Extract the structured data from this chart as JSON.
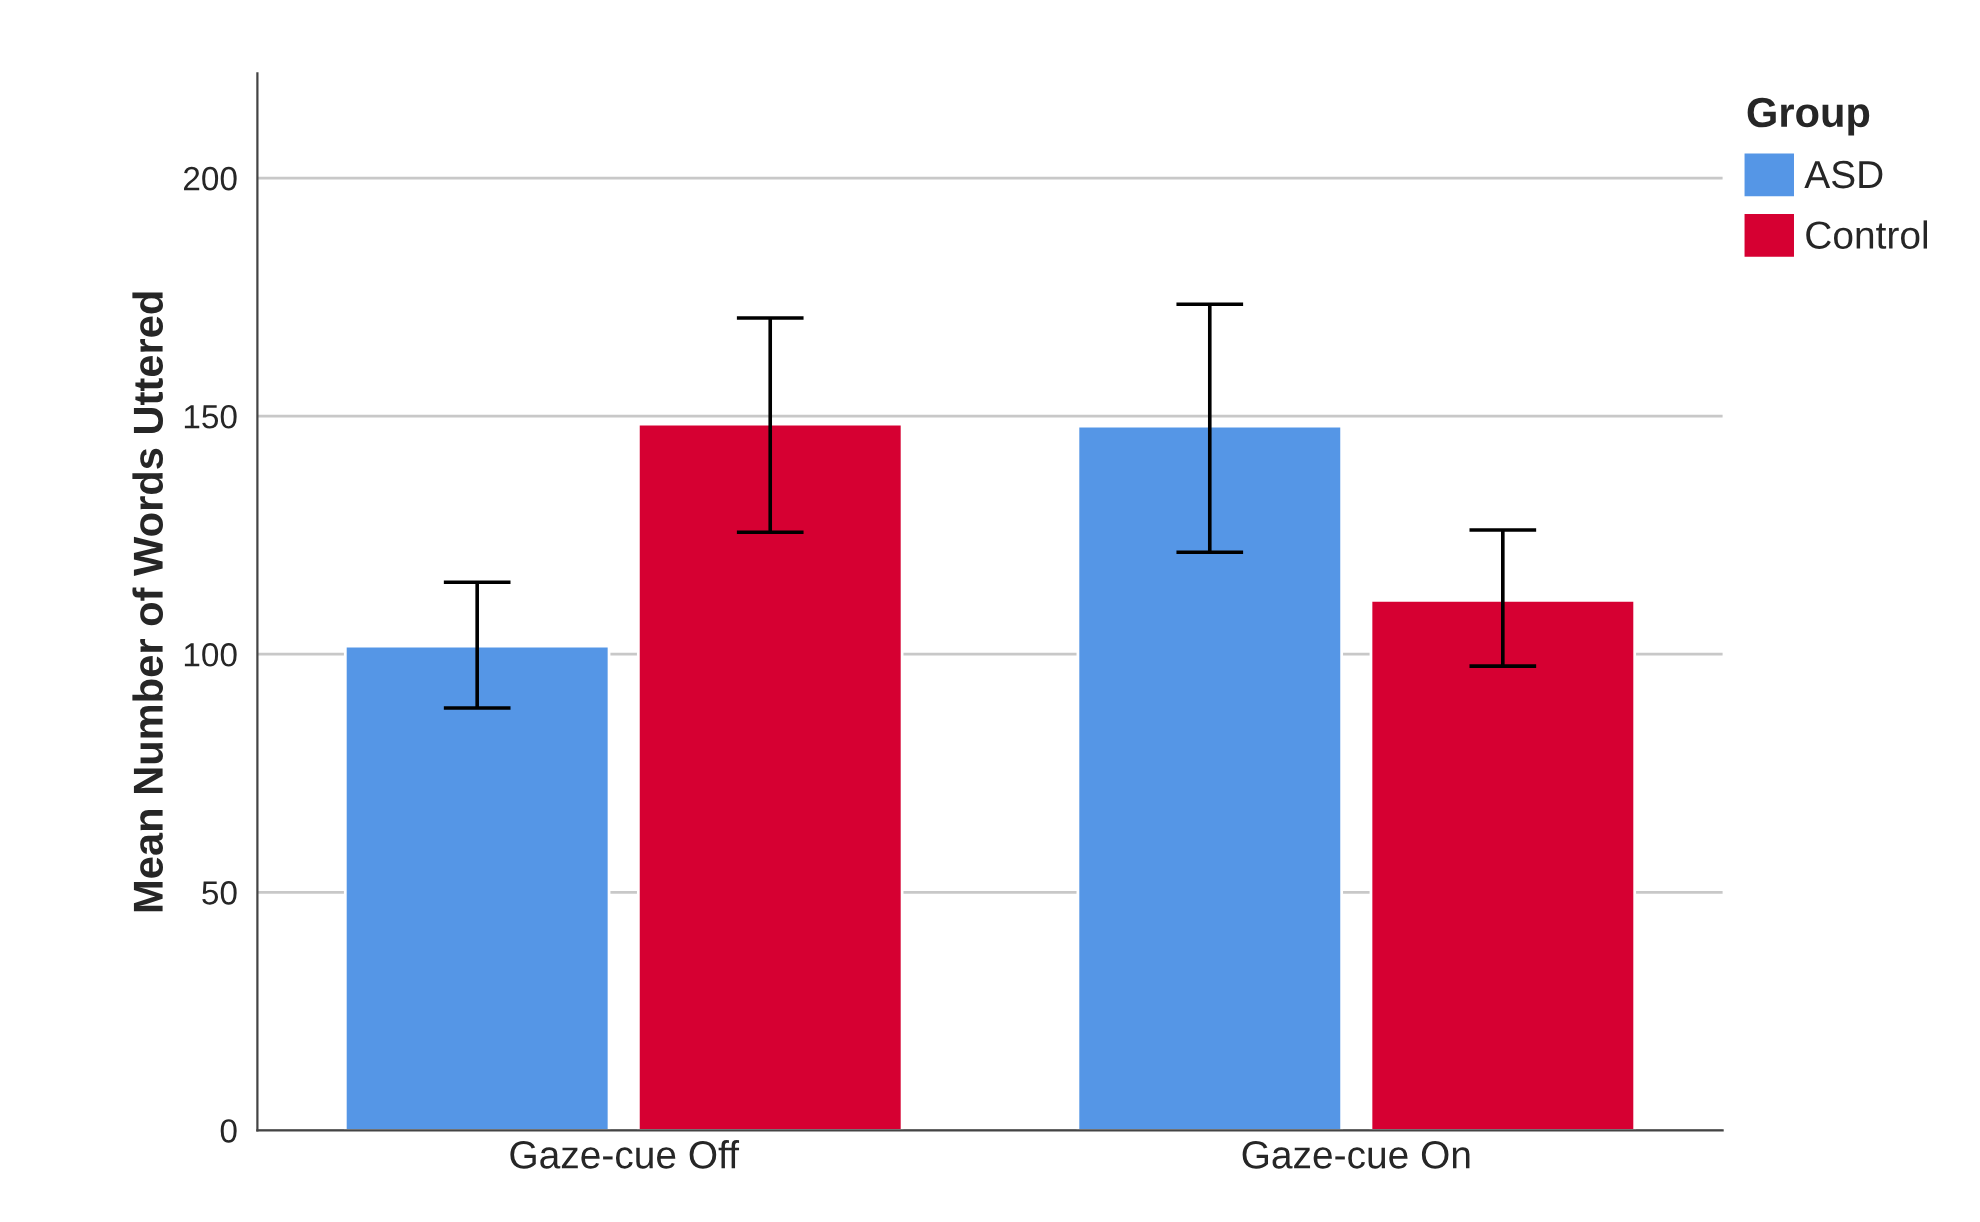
{
  "chart_data": {
    "type": "bar",
    "ylabel": "Mean Number of Words Uttered",
    "legend_title": "Group",
    "categories": [
      "Gaze-cue Off",
      "Gaze-cue On"
    ],
    "series": [
      {
        "name": "ASD",
        "color": "#5596e6",
        "values": [
          101.7,
          147.9
        ],
        "errors": [
          [
            88.7,
            115.1
          ],
          [
            121.4,
            173.5
          ]
        ]
      },
      {
        "name": "Control",
        "color": "#d60032",
        "values": [
          148.3,
          111.3
        ],
        "errors": [
          [
            125.6,
            170.6
          ],
          [
            97.5,
            126.1
          ]
        ]
      }
    ],
    "ylim": [
      0,
      222
    ],
    "yticks": [
      0,
      50,
      100,
      150,
      200
    ],
    "grid": "y",
    "legend": "top right"
  }
}
